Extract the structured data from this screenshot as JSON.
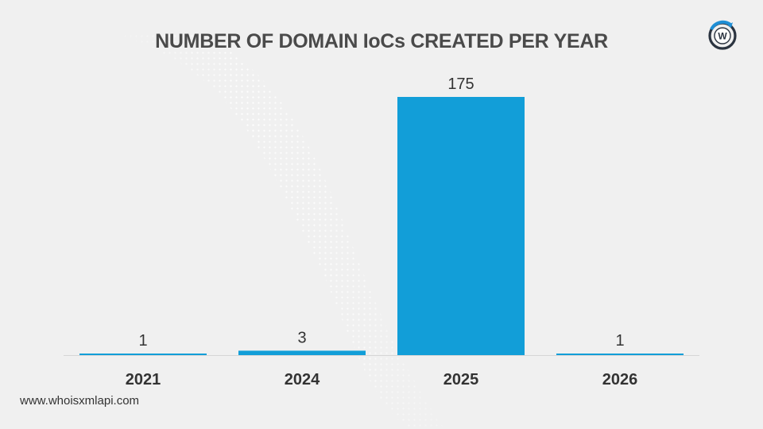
{
  "colors": {
    "background": "#f0f0f0",
    "bar": "#129ed8",
    "title": "#4a4a4a",
    "axis": "#d6d6d6",
    "text": "#333333",
    "logo_blue": "#1f8fd6",
    "logo_dark": "#2b3440"
  },
  "icons": {
    "logo": "whoisxmlapi-w-logo-icon"
  },
  "footer": {
    "url": "www.whoisxmlapi.com"
  },
  "chart_data": {
    "type": "bar",
    "title": "NUMBER OF DOMAIN IoCs CREATED PER YEAR",
    "xlabel": "",
    "ylabel": "",
    "categories": [
      "2021",
      "2024",
      "2025",
      "2026"
    ],
    "values": [
      1,
      3,
      175,
      1
    ],
    "data_labels": [
      "1",
      "3",
      "175",
      "1"
    ],
    "ylim": [
      0,
      175
    ],
    "grid": false,
    "legend": "none"
  }
}
